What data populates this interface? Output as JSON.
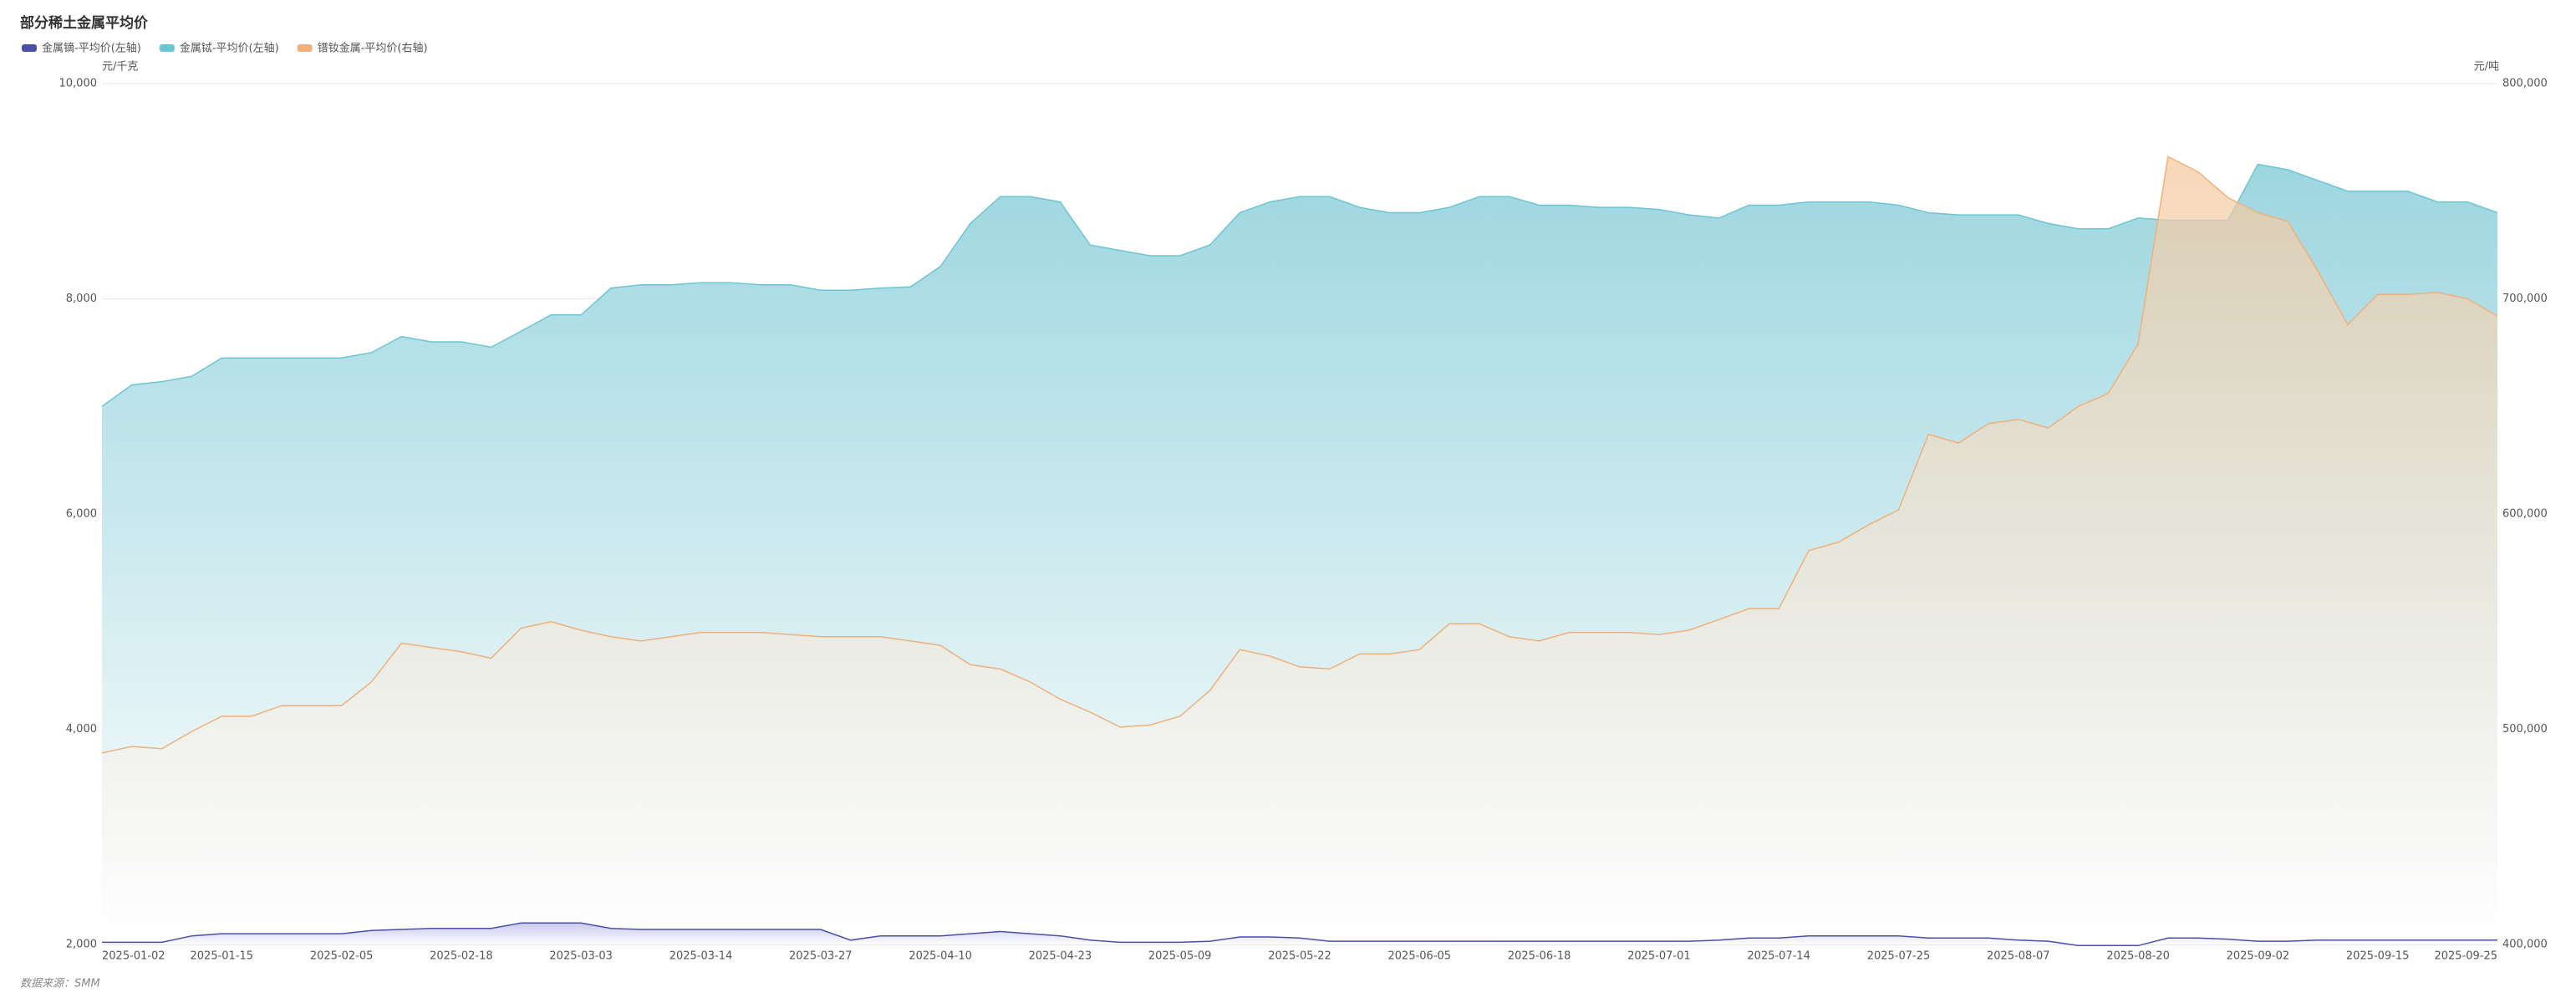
{
  "chart_data": {
    "type": "area",
    "title": "部分稀土金属平均价",
    "y_unit": "元/千克",
    "y2_unit": "元/吨",
    "source": "数据来源：SMM",
    "categories": [
      "2025-01-02",
      null,
      null,
      null,
      "2025-01-15",
      null,
      null,
      null,
      "2025-02-05",
      null,
      null,
      null,
      "2025-02-18",
      null,
      null,
      null,
      "2025-03-03",
      null,
      null,
      null,
      "2025-03-14",
      null,
      null,
      null,
      "2025-03-27",
      null,
      null,
      null,
      "2025-04-10",
      null,
      null,
      null,
      "2025-04-23",
      null,
      null,
      null,
      "2025-05-09",
      null,
      null,
      null,
      "2025-05-22",
      null,
      null,
      null,
      "2025-06-05",
      null,
      null,
      null,
      "2025-06-18",
      null,
      null,
      null,
      "2025-07-01",
      null,
      null,
      null,
      "2025-07-14",
      null,
      null,
      null,
      "2025-07-25",
      null,
      null,
      null,
      "2025-08-07",
      null,
      null,
      null,
      "2025-08-20",
      null,
      null,
      null,
      "2025-09-02",
      null,
      null,
      null,
      "2025-09-15",
      null,
      null,
      null,
      "2025-09-25"
    ],
    "series": [
      {
        "name": "金属铽-平均价(左轴)",
        "color": "#6cc5d3",
        "axis": "y",
        "values": [
          7000,
          7200,
          7230,
          7280,
          7450,
          7450,
          7450,
          7450,
          7450,
          7500,
          7650,
          7600,
          7600,
          7550,
          7700,
          7850,
          7850,
          8100,
          8130,
          8130,
          8150,
          8150,
          8130,
          8130,
          8080,
          8080,
          8100,
          8110,
          8300,
          8700,
          8950,
          8950,
          8900,
          8500,
          8450,
          8400,
          8400,
          8500,
          8800,
          8900,
          8950,
          8950,
          8850,
          8800,
          8800,
          8850,
          8950,
          8950,
          8870,
          8870,
          8850,
          8850,
          8830,
          8780,
          8750,
          8870,
          8870,
          8900,
          8900,
          8900,
          8870,
          8800,
          8780,
          8780,
          8780,
          8700,
          8650,
          8650,
          8750,
          8730,
          8730,
          8730,
          9250,
          9200,
          9100,
          9000,
          9000,
          9000,
          8900,
          8900,
          8800
        ]
      },
      {
        "name": "镨钕金属-平均价(右轴)",
        "color": "#f0b07a",
        "axis": "y2",
        "values": [
          489000,
          492000,
          491000,
          499000,
          506000,
          506000,
          511000,
          511000,
          511000,
          522000,
          540000,
          538000,
          536000,
          533000,
          547000,
          550000,
          546000,
          543000,
          541000,
          543000,
          545000,
          545000,
          545000,
          544000,
          543000,
          543000,
          543000,
          541000,
          539000,
          530000,
          528000,
          522000,
          514000,
          508000,
          501000,
          502000,
          506000,
          518000,
          537000,
          534000,
          529000,
          528000,
          535000,
          535000,
          537000,
          549000,
          549000,
          543000,
          541000,
          545000,
          545000,
          545000,
          544000,
          546000,
          551000,
          556000,
          556000,
          583000,
          587000,
          595000,
          602000,
          637000,
          633000,
          642000,
          644000,
          640000,
          650000,
          656000,
          679000,
          766000,
          759000,
          747000,
          740000,
          736000,
          713000,
          688000,
          702000,
          702000,
          703000,
          700000,
          692000
        ]
      },
      {
        "name": "金属镝-平均价(左轴)",
        "color": "#4a4fa8",
        "axis": "y",
        "values": [
          2020,
          2020,
          2020,
          2080,
          2100,
          2100,
          2100,
          2100,
          2100,
          2130,
          2140,
          2150,
          2150,
          2150,
          2200,
          2200,
          2200,
          2150,
          2140,
          2140,
          2140,
          2140,
          2140,
          2140,
          2140,
          2040,
          2080,
          2080,
          2080,
          2100,
          2120,
          2100,
          2080,
          2040,
          2020,
          2020,
          2020,
          2030,
          2070,
          2070,
          2060,
          2030,
          2030,
          2030,
          2030,
          2030,
          2030,
          2030,
          2030,
          2030,
          2030,
          2030,
          2030,
          2030,
          2040,
          2060,
          2060,
          2080,
          2080,
          2080,
          2080,
          2060,
          2060,
          2060,
          2040,
          2030,
          1990,
          1990,
          1990,
          2060,
          2060,
          2050,
          2030,
          2030,
          2040,
          2040,
          2040,
          2040,
          2040,
          2040,
          2040
        ]
      }
    ],
    "ylim": [
      2000,
      10000
    ],
    "yticks": [
      {
        "value": 2000,
        "label": "2,000"
      },
      {
        "value": 4000,
        "label": "4,000"
      },
      {
        "value": 6000,
        "label": "6,000"
      },
      {
        "value": 8000,
        "label": "8,000"
      },
      {
        "value": 10000,
        "label": "10,000"
      }
    ],
    "y2lim": [
      400000,
      800000
    ],
    "y2ticks": [
      {
        "value": 400000,
        "label": "400,000"
      },
      {
        "value": 500000,
        "label": "500,000"
      },
      {
        "value": 600000,
        "label": "600,000"
      },
      {
        "value": 700000,
        "label": "700,000"
      },
      {
        "value": 800000,
        "label": "800,000"
      }
    ],
    "grid": true
  }
}
